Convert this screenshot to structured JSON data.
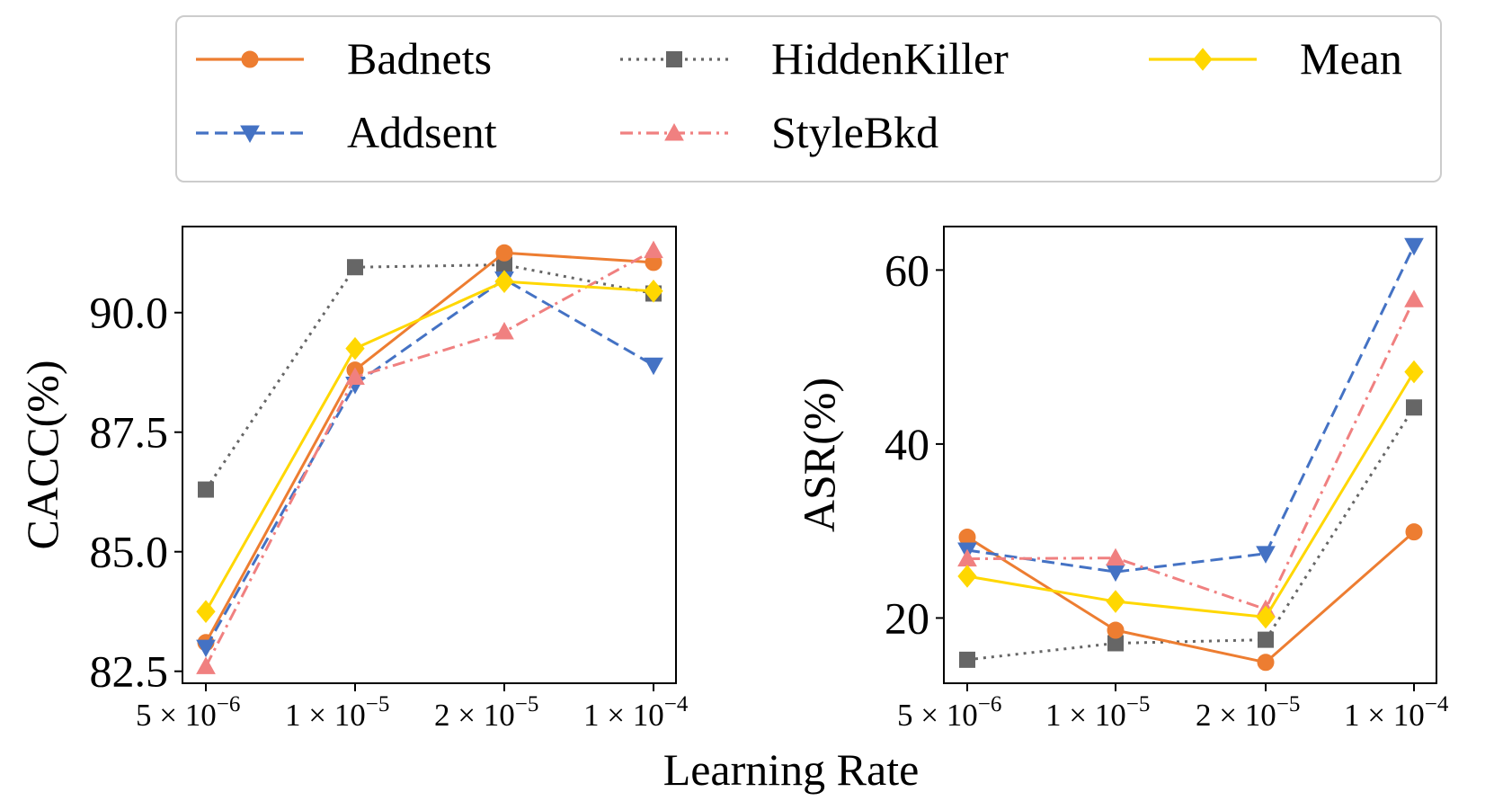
{
  "figure": {
    "xlabel": "Learning Rate"
  },
  "legend": {
    "entries": [
      {
        "name": "Badnets",
        "color": "#ED7D31",
        "marker": "circle",
        "dash": "solid"
      },
      {
        "name": "HiddenKiller",
        "color": "#666666",
        "marker": "square",
        "dash": "dotted"
      },
      {
        "name": "Mean",
        "color": "#FFD700",
        "marker": "diamond",
        "dash": "solid"
      },
      {
        "name": "Addsent",
        "color": "#4472C4",
        "marker": "triangle-down",
        "dash": "dashed"
      },
      {
        "name": "StyleBkd",
        "color": "#F08080",
        "marker": "triangle-up",
        "dash": "dashdot"
      }
    ]
  },
  "chart_data": [
    {
      "type": "line",
      "title": "",
      "xlabel": "Learning Rate",
      "ylabel": "CACC(%)",
      "categories": [
        {
          "mant": "5",
          "exp": "-6"
        },
        {
          "mant": "1",
          "exp": "-5"
        },
        {
          "mant": "2",
          "exp": "-5"
        },
        {
          "mant": "1",
          "exp": "-4"
        }
      ],
      "yticks": [
        "82.5",
        "85.0",
        "87.5",
        "90.0"
      ],
      "ytick_values": [
        82.5,
        85.0,
        87.5,
        90.0
      ],
      "ylim": [
        82.25,
        91.8
      ],
      "series": [
        {
          "name": "HiddenKiller",
          "values": [
            86.3,
            90.95,
            91.0,
            90.4
          ]
        },
        {
          "name": "Badnets",
          "values": [
            83.1,
            88.8,
            91.25,
            91.05
          ]
        },
        {
          "name": "Addsent",
          "values": [
            83.0,
            88.5,
            90.7,
            88.9
          ]
        },
        {
          "name": "StyleBkd",
          "values": [
            82.6,
            88.65,
            89.6,
            91.3
          ]
        },
        {
          "name": "Mean",
          "values": [
            83.75,
            89.25,
            90.65,
            90.45
          ]
        }
      ]
    },
    {
      "type": "line",
      "title": "",
      "xlabel": "Learning Rate",
      "ylabel": "ASR(%)",
      "categories": [
        {
          "mant": "5",
          "exp": "-6"
        },
        {
          "mant": "1",
          "exp": "-5"
        },
        {
          "mant": "2",
          "exp": "-5"
        },
        {
          "mant": "1",
          "exp": "-4"
        }
      ],
      "yticks": [
        "20",
        "40",
        "60"
      ],
      "ytick_values": [
        20,
        40,
        60
      ],
      "ylim": [
        12.5,
        65.0
      ],
      "series": [
        {
          "name": "HiddenKiller",
          "values": [
            15.2,
            17.1,
            17.5,
            44.2
          ]
        },
        {
          "name": "Badnets",
          "values": [
            29.3,
            18.6,
            14.9,
            29.9
          ]
        },
        {
          "name": "Addsent",
          "values": [
            27.8,
            25.3,
            27.4,
            62.8
          ]
        },
        {
          "name": "StyleBkd",
          "values": [
            26.8,
            26.9,
            21.0,
            56.6
          ]
        },
        {
          "name": "Mean",
          "values": [
            24.8,
            21.9,
            20.1,
            48.3
          ]
        }
      ]
    }
  ]
}
